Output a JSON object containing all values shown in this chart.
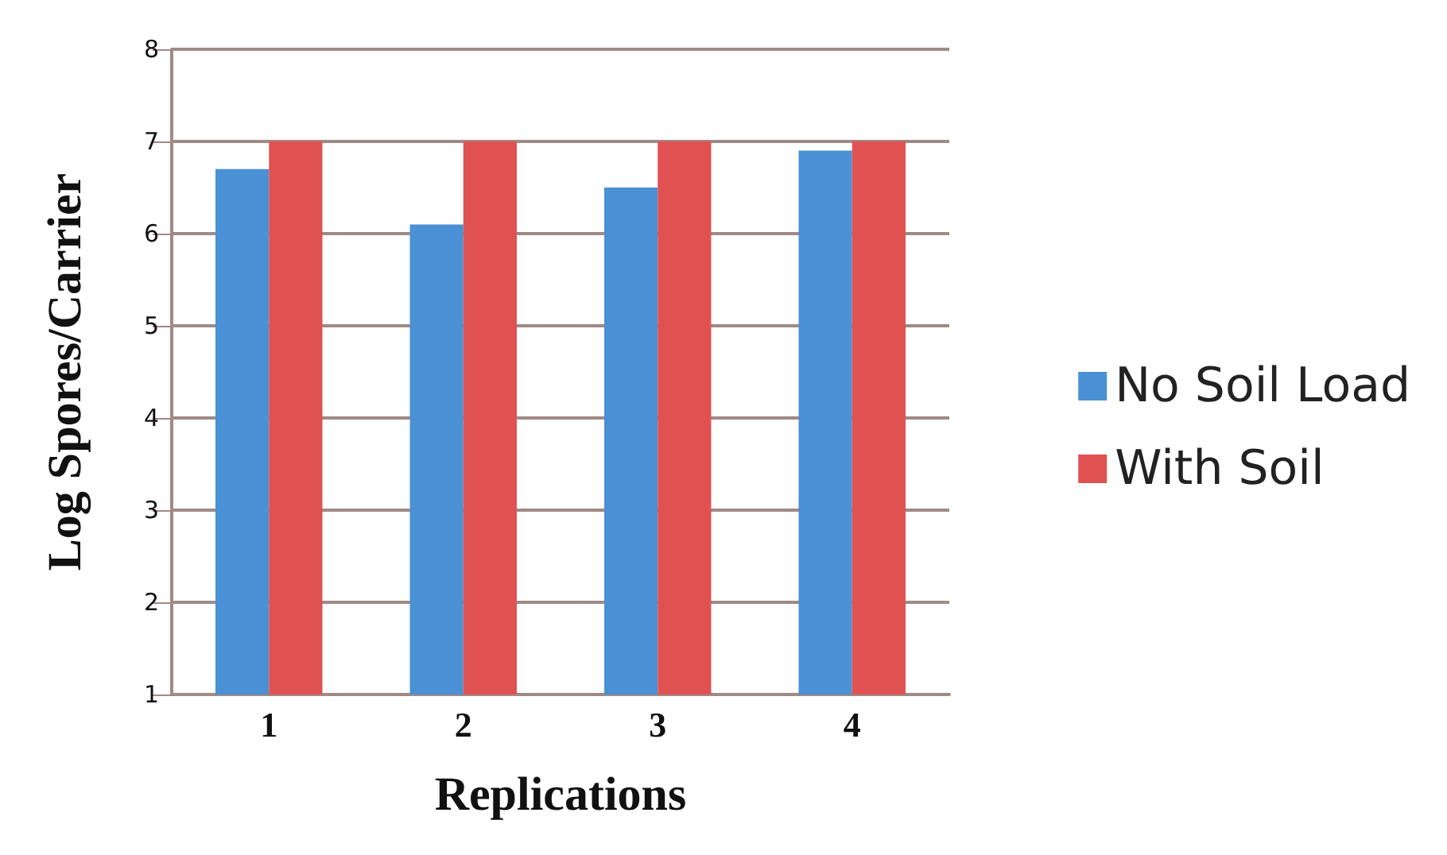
{
  "chart_data": {
    "type": "bar",
    "xlabel": "Replications",
    "ylabel": "Log Spores/Carrier",
    "categories": [
      "1",
      "2",
      "3",
      "4"
    ],
    "series": [
      {
        "name": "No Soil Load",
        "color": "#4a90d4",
        "values": [
          6.7,
          6.1,
          6.5,
          6.9
        ]
      },
      {
        "name": "With Soil",
        "color": "#e05252",
        "values": [
          7,
          7,
          7,
          7
        ]
      }
    ],
    "ylim": [
      1,
      8
    ],
    "yticks": [
      1,
      2,
      3,
      4,
      5,
      6,
      7,
      8
    ],
    "grid": "y",
    "legend": "right"
  }
}
